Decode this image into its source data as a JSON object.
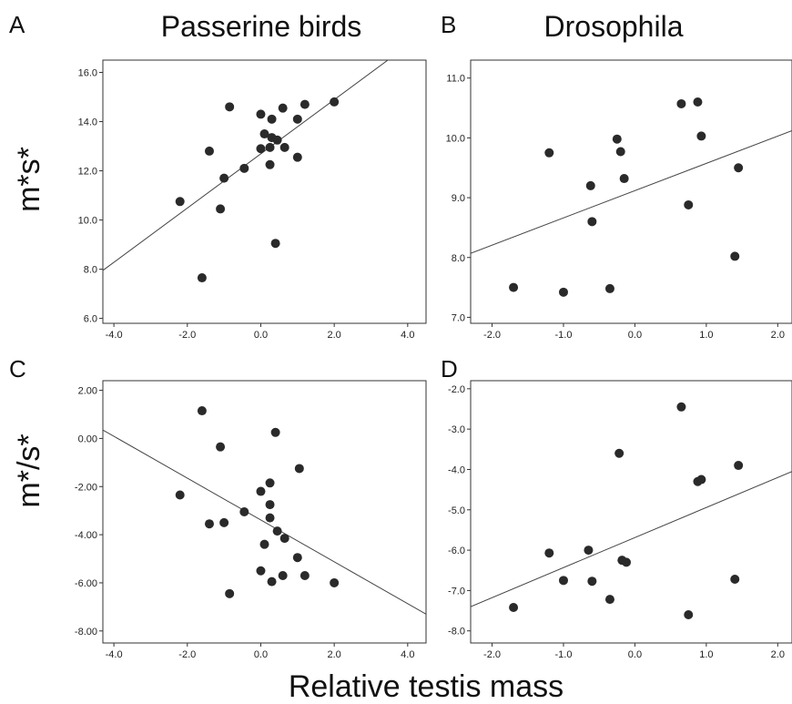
{
  "figure": {
    "column_titles": [
      "Passerine birds",
      "Drosophila"
    ],
    "row_labels": [
      "m*s*",
      "m*/s*"
    ],
    "x_title": "Relative testis mass"
  },
  "chart_data": [
    {
      "panel": "A",
      "type": "scatter",
      "xlim": [
        -4.3,
        4.5
      ],
      "ylim": [
        5.8,
        16.5
      ],
      "xticks": [
        -4.0,
        -2.0,
        0.0,
        2.0,
        4.0
      ],
      "xtick_labels": [
        "-4.0",
        "-2.0",
        "0.0",
        "2.0",
        "4.0"
      ],
      "yticks": [
        6,
        8,
        10,
        12,
        14,
        16
      ],
      "ytick_labels": [
        "6.0",
        "8.0",
        "10.0",
        "12.0",
        "14.0",
        "16.0"
      ],
      "points": [
        [
          -2.2,
          10.75
        ],
        [
          -1.6,
          7.65
        ],
        [
          -1.4,
          12.8
        ],
        [
          -1.1,
          10.45
        ],
        [
          -1.0,
          11.7
        ],
        [
          -0.85,
          14.6
        ],
        [
          -0.45,
          12.1
        ],
        [
          0.0,
          14.3
        ],
        [
          0.0,
          12.9
        ],
        [
          0.1,
          13.5
        ],
        [
          0.25,
          12.25
        ],
        [
          0.25,
          12.95
        ],
        [
          0.3,
          14.1
        ],
        [
          0.3,
          13.35
        ],
        [
          0.4,
          9.05
        ],
        [
          0.45,
          13.25
        ],
        [
          0.6,
          14.55
        ],
        [
          0.65,
          12.95
        ],
        [
          1.0,
          14.1
        ],
        [
          1.0,
          12.55
        ],
        [
          1.2,
          14.7
        ],
        [
          2.0,
          14.8
        ]
      ],
      "fit_line": [
        [
          -4.3,
          7.95
        ],
        [
          3.55,
          16.6
        ]
      ]
    },
    {
      "panel": "B",
      "type": "scatter",
      "xlim": [
        -2.3,
        2.2
      ],
      "ylim": [
        6.9,
        11.3
      ],
      "xticks": [
        -2.0,
        -1.0,
        0.0,
        1.0,
        2.0
      ],
      "xtick_labels": [
        "-2.0",
        "-1.0",
        "0.0",
        "1.0",
        "2.0"
      ],
      "yticks": [
        7,
        8,
        9,
        10,
        11
      ],
      "ytick_labels": [
        "7.0",
        "8.0",
        "9.0",
        "10.0",
        "11.0"
      ],
      "points": [
        [
          -1.7,
          7.5
        ],
        [
          -1.2,
          9.75
        ],
        [
          -1.0,
          7.42
        ],
        [
          -0.62,
          9.2
        ],
        [
          -0.6,
          8.6
        ],
        [
          -0.35,
          7.48
        ],
        [
          -0.25,
          9.98
        ],
        [
          -0.2,
          9.77
        ],
        [
          -0.15,
          9.32
        ],
        [
          0.65,
          10.57
        ],
        [
          0.75,
          8.88
        ],
        [
          0.88,
          10.6
        ],
        [
          0.93,
          10.03
        ],
        [
          1.4,
          8.02
        ],
        [
          1.45,
          9.5
        ]
      ],
      "fit_line": [
        [
          -2.3,
          8.07
        ],
        [
          2.2,
          10.12
        ]
      ]
    },
    {
      "panel": "C",
      "type": "scatter",
      "xlim": [
        -4.3,
        4.5
      ],
      "ylim": [
        -8.5,
        2.4
      ],
      "xticks": [
        -4.0,
        -2.0,
        0.0,
        2.0,
        4.0
      ],
      "xtick_labels": [
        "-4.0",
        "-2.0",
        "0.0",
        "2.0",
        "4.0"
      ],
      "yticks": [
        -8,
        -6,
        -4,
        -2,
        0,
        2
      ],
      "ytick_labels": [
        "-8.00",
        "-6.00",
        "-4.00",
        "-2.00",
        "0.00",
        "2.00"
      ],
      "points": [
        [
          -2.2,
          -2.35
        ],
        [
          -1.6,
          1.15
        ],
        [
          -1.4,
          -3.55
        ],
        [
          -1.1,
          -0.35
        ],
        [
          -1.0,
          -3.5
        ],
        [
          -0.85,
          -6.45
        ],
        [
          -0.45,
          -3.05
        ],
        [
          0.0,
          -2.2
        ],
        [
          0.0,
          -5.5
        ],
        [
          0.1,
          -4.4
        ],
        [
          0.25,
          -1.85
        ],
        [
          0.25,
          -2.75
        ],
        [
          0.25,
          -3.3
        ],
        [
          0.3,
          -5.95
        ],
        [
          0.4,
          0.25
        ],
        [
          0.45,
          -3.85
        ],
        [
          0.6,
          -5.7
        ],
        [
          0.65,
          -4.15
        ],
        [
          1.0,
          -4.95
        ],
        [
          1.05,
          -1.25
        ],
        [
          1.2,
          -5.7
        ],
        [
          2.0,
          -6.0
        ]
      ],
      "fit_line": [
        [
          -4.3,
          0.35
        ],
        [
          4.5,
          -7.3
        ]
      ]
    },
    {
      "panel": "D",
      "type": "scatter",
      "xlim": [
        -2.3,
        2.2
      ],
      "ylim": [
        -8.3,
        -1.8
      ],
      "xticks": [
        -2.0,
        -1.0,
        0.0,
        1.0,
        2.0
      ],
      "xtick_labels": [
        "-2.0",
        "-1.0",
        "0.0",
        "1.0",
        "2.0"
      ],
      "yticks": [
        -8,
        -7,
        -6,
        -5,
        -4,
        -3,
        -2
      ],
      "ytick_labels": [
        "-8.0",
        "-7.0",
        "-6.0",
        "-5.0",
        "-4.0",
        "-3.0",
        "-2.0"
      ],
      "points": [
        [
          -1.7,
          -7.42
        ],
        [
          -1.2,
          -6.07
        ],
        [
          -1.0,
          -6.75
        ],
        [
          -0.65,
          -6.0
        ],
        [
          -0.6,
          -6.77
        ],
        [
          -0.35,
          -7.22
        ],
        [
          -0.22,
          -3.6
        ],
        [
          -0.18,
          -6.25
        ],
        [
          -0.12,
          -6.3
        ],
        [
          0.65,
          -2.45
        ],
        [
          0.75,
          -7.6
        ],
        [
          0.88,
          -4.3
        ],
        [
          0.93,
          -4.25
        ],
        [
          1.4,
          -6.72
        ],
        [
          1.45,
          -3.9
        ]
      ],
      "fit_line": [
        [
          -2.3,
          -7.4
        ],
        [
          2.2,
          -4.05
        ]
      ]
    }
  ]
}
